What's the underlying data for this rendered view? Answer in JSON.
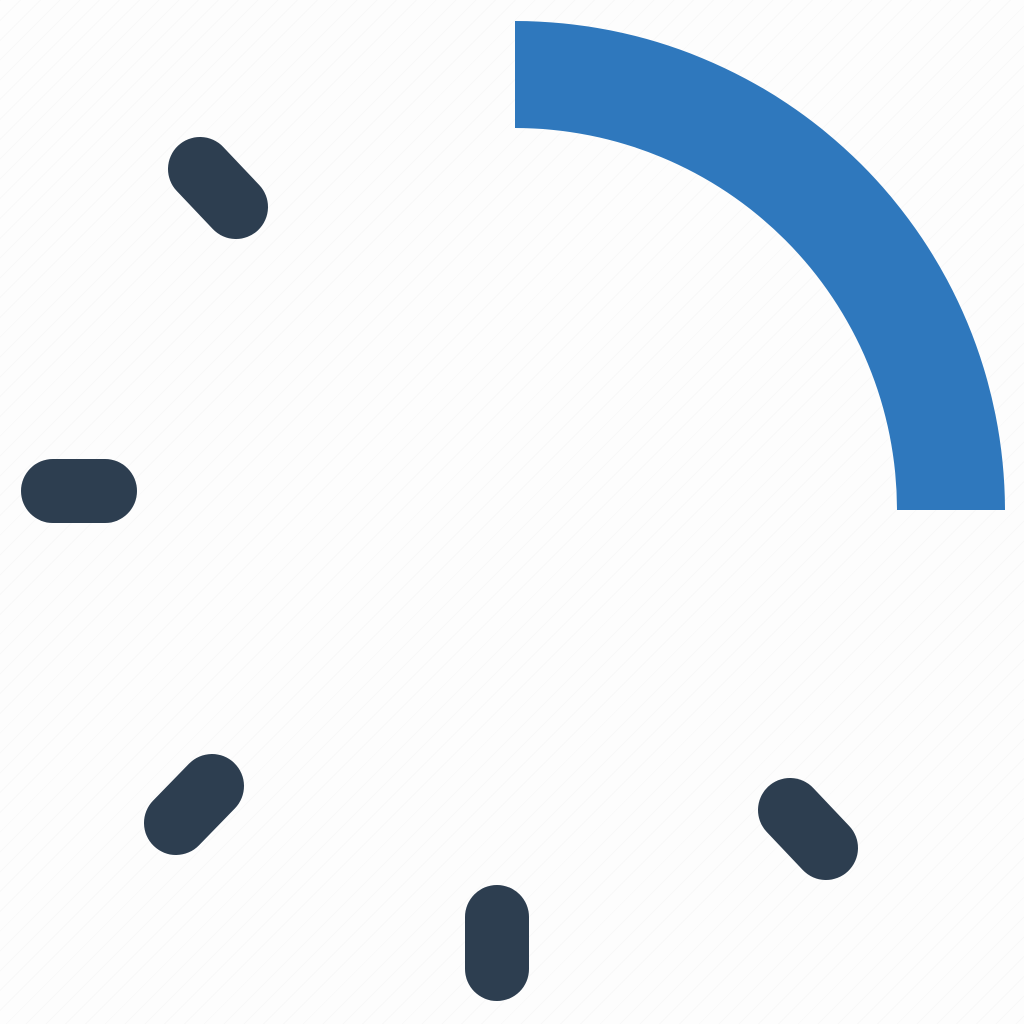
{
  "icon": {
    "name": "loading-spinner-icon",
    "progress_fraction": 0.25,
    "tick_count": 5,
    "colors": {
      "arc": "#2f78bd",
      "ticks": "#2d3e50",
      "background": "#fdfdfd"
    }
  }
}
